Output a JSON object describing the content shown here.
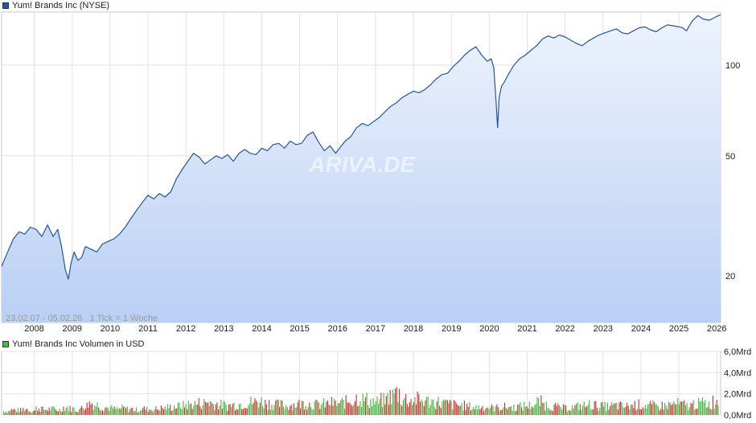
{
  "chart_data": [
    {
      "type": "line",
      "title": "Yum! Brands Inc (NYSE)",
      "yscale": "log",
      "ylim": [
        14,
        150
      ],
      "xlim": [
        2007.14,
        2026.1
      ],
      "y_ticks": [
        20,
        50,
        100
      ],
      "y_tick_labels": [
        "20",
        "50",
        "100"
      ],
      "x_ticks": [
        2008,
        2009,
        2010,
        2011,
        2012,
        2013,
        2014,
        2015,
        2016,
        2017,
        2018,
        2019,
        2020,
        2021,
        2022,
        2023,
        2024,
        2025,
        2026
      ],
      "x_tick_labels": [
        "2008",
        "2009",
        "2010",
        "2011",
        "2012",
        "2013",
        "2014",
        "2015",
        "2016",
        "2017",
        "2018",
        "2019",
        "2020",
        "2021",
        "2022",
        "2023",
        "2024",
        "2025",
        "2026"
      ],
      "annotation": "23.02.07 - 05.02.26   1 Tick = 1 Woche",
      "watermark": "ARIVA.DE",
      "grid": true,
      "line_color": "#2255aa",
      "fill_top_color": "#eef3fd",
      "fill_bottom_color": "#b9cff4",
      "series": [
        {
          "name": "Yum! Brands Inc (NYSE)",
          "x": [
            2007.14,
            2007.3,
            2007.45,
            2007.6,
            2007.75,
            2007.9,
            2008.05,
            2008.2,
            2008.35,
            2008.5,
            2008.62,
            2008.72,
            2008.82,
            2008.9,
            2008.97,
            2009.05,
            2009.15,
            2009.25,
            2009.35,
            2009.5,
            2009.65,
            2009.8,
            2009.95,
            2010.1,
            2010.25,
            2010.4,
            2010.55,
            2010.7,
            2010.85,
            2011.0,
            2011.15,
            2011.3,
            2011.45,
            2011.6,
            2011.75,
            2011.9,
            2012.05,
            2012.2,
            2012.35,
            2012.5,
            2012.65,
            2012.8,
            2012.95,
            2013.1,
            2013.25,
            2013.4,
            2013.55,
            2013.7,
            2013.85,
            2014.0,
            2014.15,
            2014.3,
            2014.45,
            2014.6,
            2014.75,
            2014.9,
            2015.05,
            2015.2,
            2015.35,
            2015.5,
            2015.65,
            2015.8,
            2015.95,
            2016.05,
            2016.2,
            2016.35,
            2016.5,
            2016.65,
            2016.8,
            2016.95,
            2017.1,
            2017.25,
            2017.4,
            2017.55,
            2017.7,
            2017.85,
            2018.0,
            2018.15,
            2018.3,
            2018.45,
            2018.6,
            2018.75,
            2018.9,
            2019.05,
            2019.2,
            2019.35,
            2019.5,
            2019.65,
            2019.8,
            2019.95,
            2020.05,
            2020.12,
            2020.18,
            2020.22,
            2020.26,
            2020.32,
            2020.4,
            2020.5,
            2020.65,
            2020.8,
            2020.95,
            2021.1,
            2021.25,
            2021.4,
            2021.55,
            2021.7,
            2021.85,
            2022.0,
            2022.15,
            2022.3,
            2022.45,
            2022.6,
            2022.75,
            2022.9,
            2023.05,
            2023.2,
            2023.35,
            2023.5,
            2023.65,
            2023.8,
            2023.95,
            2024.1,
            2024.25,
            2024.4,
            2024.55,
            2024.7,
            2024.85,
            2025.0,
            2025.1,
            2025.2,
            2025.35,
            2025.5,
            2025.65,
            2025.8,
            2025.95,
            2026.1
          ],
          "values": [
            21.5,
            24.0,
            26.5,
            28.0,
            27.5,
            29.0,
            28.5,
            27.0,
            29.5,
            27.0,
            28.5,
            25.0,
            21.0,
            19.5,
            22.0,
            24.0,
            22.5,
            23.0,
            25.0,
            24.5,
            24.0,
            25.5,
            26.0,
            26.5,
            27.5,
            29.0,
            31.0,
            33.0,
            35.0,
            37.0,
            36.0,
            37.5,
            36.5,
            38.0,
            42.0,
            45.0,
            48.0,
            51.0,
            49.5,
            47.0,
            48.5,
            50.0,
            49.0,
            50.5,
            48.0,
            51.0,
            52.5,
            51.0,
            50.5,
            53.0,
            52.0,
            54.5,
            55.0,
            53.0,
            56.0,
            54.5,
            55.0,
            58.5,
            60.0,
            55.5,
            52.0,
            54.0,
            51.0,
            53.0,
            56.0,
            58.0,
            62.0,
            64.0,
            63.0,
            65.0,
            67.0,
            70.0,
            73.0,
            75.0,
            78.0,
            80.0,
            82.0,
            81.0,
            83.0,
            86.0,
            90.0,
            93.0,
            94.0,
            99.0,
            103.0,
            108.0,
            112.0,
            115.0,
            108.0,
            103.0,
            105.0,
            98.0,
            75.0,
            62.0,
            78.0,
            85.0,
            88.0,
            93.0,
            100.0,
            105.0,
            108.0,
            112.0,
            116.0,
            122.0,
            125.0,
            123.0,
            126.0,
            124.0,
            121.0,
            118.0,
            116.0,
            120.0,
            123.0,
            126.0,
            128.0,
            130.0,
            132.0,
            128.0,
            127.0,
            130.0,
            133.0,
            134.0,
            131.0,
            129.0,
            133.0,
            136.0,
            135.0,
            134.0,
            133.0,
            130.0,
            140.0,
            146.0,
            142.0,
            141.0,
            144.0,
            147.0
          ]
        }
      ]
    },
    {
      "type": "bar",
      "title": "Yum! Brands Inc Volumen in USD",
      "ylim": [
        0,
        6.0
      ],
      "y_ticks": [
        0,
        2,
        4,
        6
      ],
      "y_tick_labels": [
        "0,0Mrd",
        "2,0Mrd",
        "4,0Mrd",
        "6,0Mrd"
      ],
      "up_color": "#44bb44",
      "down_color": "#cc3333",
      "values": [
        0.45,
        0.6,
        0.55,
        0.7,
        0.5,
        0.8,
        0.65,
        0.7,
        0.6,
        0.9,
        0.75,
        0.6,
        1.1,
        1.4,
        1.2,
        0.9,
        0.8,
        0.7,
        0.8,
        0.7,
        0.6,
        0.75,
        0.65,
        0.7,
        0.8,
        0.9,
        1.0,
        1.1,
        1.2,
        1.3,
        1.4,
        1.5,
        1.3,
        1.2,
        1.1,
        1.2,
        1.3,
        1.4,
        1.5,
        1.6,
        1.4,
        1.3,
        1.2,
        1.1,
        1.2,
        1.3,
        1.4,
        1.3,
        1.2,
        1.3,
        1.4,
        1.3,
        1.5,
        1.7,
        2.0,
        1.8,
        1.6,
        1.5,
        1.7,
        2.2,
        2.6,
        1.9,
        1.7,
        1.8,
        1.7,
        1.6,
        1.5,
        1.4,
        1.3,
        1.2,
        1.1,
        1.0,
        0.9,
        0.95,
        0.9,
        0.85,
        0.9,
        0.95,
        0.9,
        1.0,
        1.1,
        1.2,
        1.5,
        1.2,
        1.0,
        0.9,
        0.8,
        0.9,
        1.0,
        1.1,
        1.2,
        1.1,
        1.0,
        1.05,
        1.1,
        1.0,
        1.1,
        1.2,
        1.15,
        1.1,
        1.0,
        1.1,
        1.2,
        1.3,
        1.2,
        1.1,
        1.3,
        1.4,
        1.3,
        1.6
      ]
    }
  ]
}
